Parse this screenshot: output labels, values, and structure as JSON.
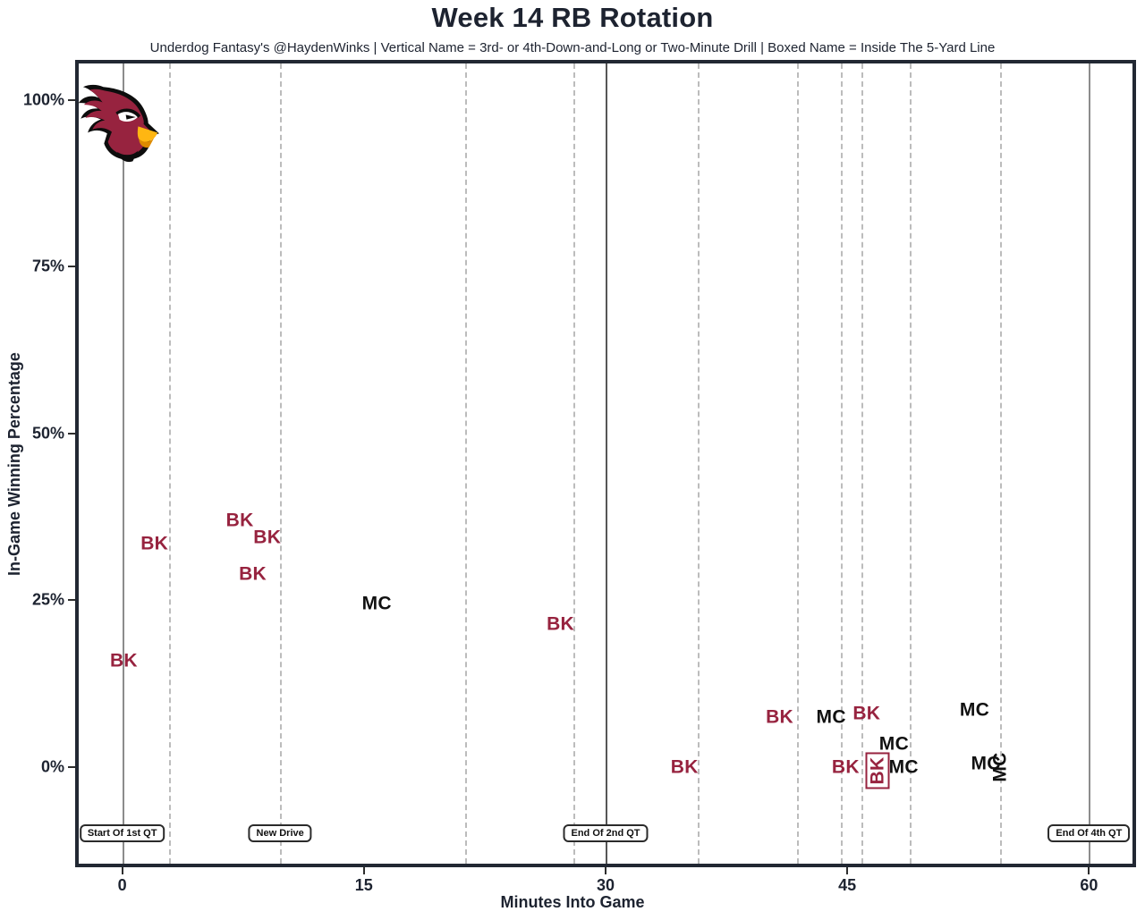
{
  "header": {
    "title": "Week 14 RB Rotation",
    "subtitle": "Underdog Fantasy's @HaydenWinks | Vertical Name = 3rd- or 4th-Down-and-Long or Two-Minute Drill | Boxed Name = Inside The 5-Yard Line"
  },
  "chart_data": {
    "type": "scatter",
    "title": "Week 14 RB Rotation",
    "xlabel": "Minutes Into Game",
    "ylabel": "In-Game Winning Percentage",
    "xlim": [
      -2.7,
      62.7
    ],
    "ylim": [
      -14.5,
      105.5
    ],
    "x_ticks": [
      0,
      15,
      30,
      45,
      60
    ],
    "y_ticks": [
      0,
      25,
      50,
      75,
      100
    ],
    "y_tick_suffix": "%",
    "grid": false,
    "legend": "none",
    "marker_style_key": {
      "vertical": "3rd- or 4th-Down-and-Long or Two-Minute Drill",
      "boxed": "Inside The 5-Yard Line"
    },
    "colors": {
      "BK": "#97233F",
      "MC": "#111111"
    },
    "quarter_lines_solid_x": [
      0,
      30,
      60
    ],
    "new_drive_lines_dashed_x": [
      2.9,
      9.8,
      21.3,
      28.0,
      35.7,
      41.9,
      44.6,
      45.9,
      48.9,
      54.5
    ],
    "points": [
      {
        "label": "BK",
        "x": 0.1,
        "y": 16,
        "style": "normal"
      },
      {
        "label": "BK",
        "x": 2.0,
        "y": 33.5,
        "style": "normal"
      },
      {
        "label": "BK",
        "x": 7.3,
        "y": 37,
        "style": "normal"
      },
      {
        "label": "BK",
        "x": 9.0,
        "y": 34.5,
        "style": "normal"
      },
      {
        "label": "BK",
        "x": 8.1,
        "y": 29,
        "style": "normal"
      },
      {
        "label": "BK",
        "x": 27.2,
        "y": 21.5,
        "style": "normal"
      },
      {
        "label": "BK",
        "x": 34.9,
        "y": 0,
        "style": "normal"
      },
      {
        "label": "BK",
        "x": 40.8,
        "y": 7.5,
        "style": "normal"
      },
      {
        "label": "BK",
        "x": 46.2,
        "y": 8,
        "style": "normal"
      },
      {
        "label": "BK",
        "x": 44.9,
        "y": 0,
        "style": "normal"
      },
      {
        "label": "BK",
        "x": 46.9,
        "y": -0.5,
        "style": "boxed-vertical"
      },
      {
        "label": "MC",
        "x": 15.8,
        "y": 24.5,
        "style": "normal"
      },
      {
        "label": "MC",
        "x": 44.0,
        "y": 7.5,
        "style": "normal"
      },
      {
        "label": "MC",
        "x": 47.9,
        "y": 3.5,
        "style": "normal"
      },
      {
        "label": "MC",
        "x": 48.5,
        "y": 0,
        "style": "normal"
      },
      {
        "label": "MC",
        "x": 52.9,
        "y": 8.5,
        "style": "normal"
      },
      {
        "label": "MC",
        "x": 53.6,
        "y": 0.5,
        "style": "normal"
      },
      {
        "label": "MC",
        "x": 54.5,
        "y": 0,
        "style": "vertical"
      }
    ],
    "annotations": [
      {
        "text": "Start Of 1st QT",
        "x": 0,
        "y": -10
      },
      {
        "text": "New Drive",
        "x": 9.8,
        "y": -10
      },
      {
        "text": "End Of 2nd QT",
        "x": 30,
        "y": -10
      },
      {
        "text": "End Of 4th QT",
        "x": 60,
        "y": -10
      }
    ],
    "logo": "arizona-cardinals-logo"
  }
}
